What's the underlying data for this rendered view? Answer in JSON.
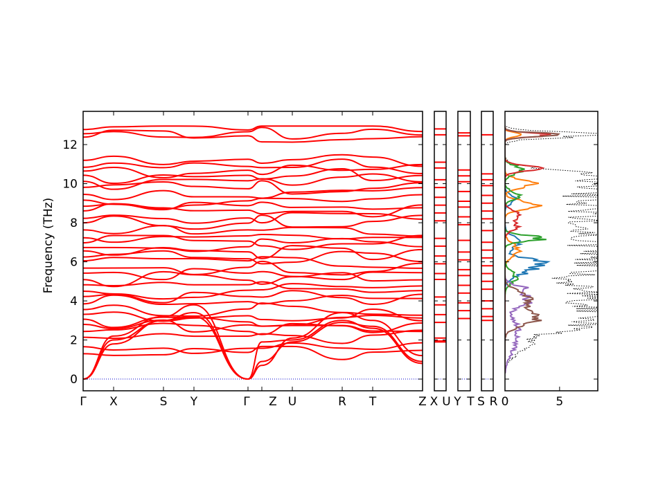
{
  "chart_data": {
    "type": "line",
    "ylabel": "Frequency (THz)",
    "ylim": [
      -0.6,
      13.7
    ],
    "yticks": [
      "0",
      "2",
      "4",
      "6",
      "8",
      "10",
      "12"
    ],
    "colors": {
      "bands": "#ff0000",
      "zero_line": "#0000cc",
      "total_dos": "#000000"
    },
    "panels": [
      {
        "id": "main",
        "xticks": [
          "Γ",
          "X",
          "S",
          "Y",
          "Γ",
          "Z",
          "U",
          "R",
          "T",
          "Z"
        ],
        "xtick_fractions": [
          0.0,
          0.0898,
          0.2367,
          0.3265,
          0.4857,
          0.5265,
          0.6163,
          0.7633,
          0.8531,
          1.0
        ]
      },
      {
        "id": "seg-xu",
        "xticks": [
          "X",
          "U"
        ],
        "levels": [
          12.8,
          12.5,
          11.1,
          10.8,
          10.2,
          9.8,
          9.3,
          8.9,
          8.5,
          8.1,
          7.2,
          6.8,
          6.3,
          5.9,
          5.4,
          5.1,
          4.2,
          3.8,
          3.3,
          2.9,
          2.1,
          1.95,
          1.9
        ]
      },
      {
        "id": "seg-yt",
        "xticks": [
          "Y",
          "T"
        ],
        "levels": [
          12.6,
          12.45,
          10.7,
          10.4,
          10.1,
          9.6,
          9.1,
          8.8,
          8.3,
          7.9,
          7.1,
          6.5,
          6.1,
          5.6,
          5.3,
          4.8,
          4.4,
          3.9,
          3.5,
          3.1
        ]
      },
      {
        "id": "seg-sr",
        "xticks": [
          "S",
          "R"
        ],
        "levels": [
          12.5,
          10.5,
          10.2,
          9.9,
          9.4,
          9.0,
          8.6,
          8.2,
          7.6,
          7.0,
          6.6,
          6.2,
          5.8,
          5.4,
          5.0,
          4.6,
          4.0,
          3.6,
          3.2,
          3.0
        ]
      },
      {
        "id": "dos",
        "xticks": [
          "0",
          "5"
        ],
        "xlim": [
          0,
          8.5
        ]
      }
    ],
    "dos_series": [
      {
        "color": "#1f77b4"
      },
      {
        "color": "#ff7f0e"
      },
      {
        "color": "#2ca02c"
      },
      {
        "color": "#d62728"
      },
      {
        "color": "#9467bd"
      },
      {
        "color": "#8c564b"
      }
    ]
  }
}
